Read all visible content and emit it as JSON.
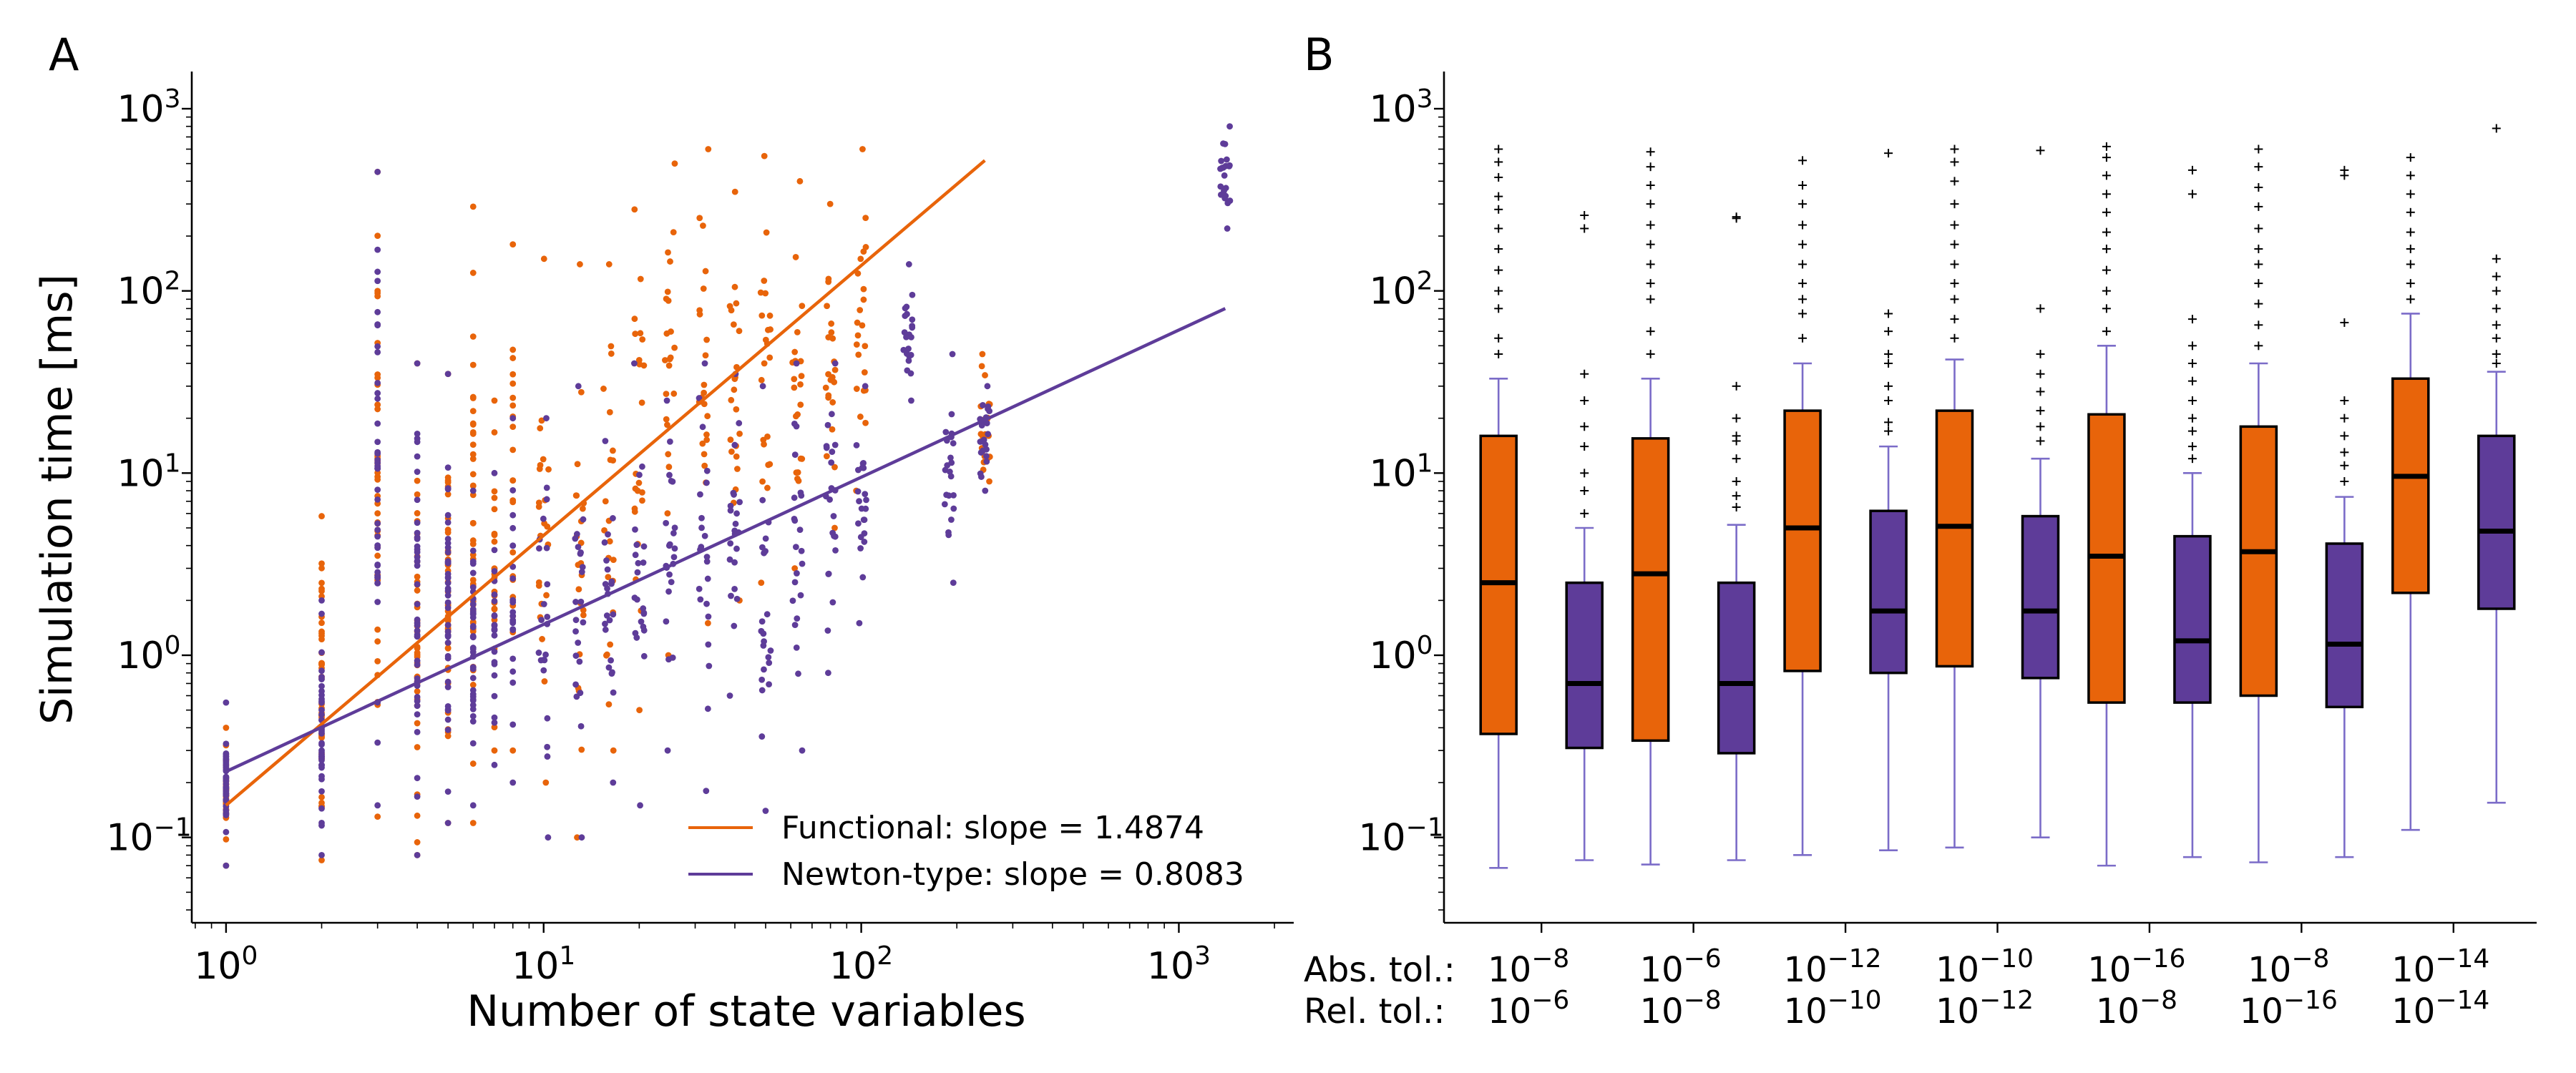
{
  "colors": {
    "functional": "#E8640A",
    "newton": "#5E3C99",
    "whisker": "#7B6CC8",
    "flier": "#000000",
    "median": "#000000"
  },
  "chart_data": [
    {
      "panel_label": "A",
      "type": "scatter",
      "xlabel": "Number of state variables",
      "ylabel": "Simulation time [ms]",
      "x_scale": "log",
      "y_scale": "log",
      "xlim": [
        0.78,
        2300
      ],
      "ylim": [
        0.034,
        1600
      ],
      "x_ticks": [
        {
          "value": 1,
          "base": "10",
          "exp": "0"
        },
        {
          "value": 10,
          "base": "10",
          "exp": "1"
        },
        {
          "value": 100,
          "base": "10",
          "exp": "2"
        },
        {
          "value": 1000,
          "base": "10",
          "exp": "3"
        }
      ],
      "y_ticks": [
        {
          "value": 0.1,
          "base": "10",
          "exp": "−1"
        },
        {
          "value": 1,
          "base": "10",
          "exp": "0"
        },
        {
          "value": 10,
          "base": "10",
          "exp": "1"
        },
        {
          "value": 100,
          "base": "10",
          "exp": "2"
        },
        {
          "value": 1000,
          "base": "10",
          "exp": "3"
        }
      ],
      "legend_position": "lower-right",
      "fit_lines": [
        {
          "name": "Functional: slope = 1.4874",
          "color_key": "functional",
          "x": [
            1,
            245
          ],
          "y": [
            0.15,
            520
          ]
        },
        {
          "name": "Newton-type: slope = 0.8083",
          "color_key": "newton",
          "x": [
            1,
            1400
          ],
          "y": [
            0.23,
            80
          ]
        }
      ],
      "columns": [
        {
          "x": 1,
          "functional": [
            0.07,
            0.4
          ],
          "newton": [
            0.07,
            0.55
          ]
        },
        {
          "x": 2,
          "functional": [
            0.075,
            5.8
          ],
          "newton": [
            0.08,
            2.0
          ]
        },
        {
          "x": 3,
          "functional": [
            0.13,
            450
          ],
          "newton": [
            0.15,
            450
          ]
        },
        {
          "x": 4,
          "functional": [
            0.08,
            40
          ],
          "newton": [
            0.08,
            40
          ]
        },
        {
          "x": 5,
          "functional": [
            0.12,
            35
          ],
          "newton": [
            0.12,
            35
          ]
        },
        {
          "x": 6,
          "functional": [
            0.12,
            290
          ],
          "newton": [
            0.15,
            8
          ]
        },
        {
          "x": 7,
          "functional": [
            0.3,
            25
          ],
          "newton": [
            0.25,
            10
          ]
        },
        {
          "x": 8,
          "functional": [
            0.3,
            180
          ],
          "newton": [
            0.2,
            20
          ]
        },
        {
          "x": 10,
          "functional": [
            0.2,
            150
          ],
          "newton": [
            0.1,
            20
          ]
        },
        {
          "x": 13,
          "functional": [
            0.1,
            140
          ],
          "newton": [
            0.1,
            30
          ]
        },
        {
          "x": 16,
          "functional": [
            0.3,
            140
          ],
          "newton": [
            0.2,
            15
          ]
        },
        {
          "x": 20,
          "functional": [
            0.5,
            280
          ],
          "newton": [
            0.15,
            40
          ]
        },
        {
          "x": 25,
          "functional": [
            1.0,
            500
          ],
          "newton": [
            0.3,
            25
          ]
        },
        {
          "x": 32,
          "functional": [
            1.5,
            600
          ],
          "newton": [
            0.18,
            40
          ]
        },
        {
          "x": 40,
          "functional": [
            2.0,
            350
          ],
          "newton": [
            0.6,
            35
          ]
        },
        {
          "x": 50,
          "functional": [
            2.5,
            550
          ],
          "newton": [
            0.14,
            30
          ]
        },
        {
          "x": 63,
          "functional": [
            3.0,
            400
          ],
          "newton": [
            0.3,
            40
          ]
        },
        {
          "x": 80,
          "functional": [
            5.0,
            300
          ],
          "newton": [
            0.8,
            40
          ]
        },
        {
          "x": 100,
          "functional": [
            8.0,
            600
          ],
          "newton": [
            1.5,
            30
          ]
        },
        {
          "x": 140,
          "functional": [],
          "newton": [
            25,
            140
          ]
        },
        {
          "x": 190,
          "functional": [],
          "newton": [
            2.5,
            45
          ]
        },
        {
          "x": 245,
          "functional": [
            9.0,
            45
          ],
          "newton": [
            8.0,
            30
          ]
        },
        {
          "x": 1400,
          "functional": [],
          "newton": [
            220,
            800
          ]
        }
      ]
    },
    {
      "panel_label": "B",
      "type": "box",
      "y_scale": "log",
      "ylim": [
        0.034,
        1600
      ],
      "y_ticks": [
        {
          "value": 0.1,
          "base": "10",
          "exp": "−1"
        },
        {
          "value": 1,
          "base": "10",
          "exp": "0"
        },
        {
          "value": 10,
          "base": "10",
          "exp": "1"
        },
        {
          "value": 100,
          "base": "10",
          "exp": "2"
        },
        {
          "value": 1000,
          "base": "10",
          "exp": "3"
        }
      ],
      "row_labels": {
        "abs": "Abs. tol.:",
        "rel": "Rel. tol.:"
      },
      "groups": [
        {
          "abs": {
            "base": "10",
            "exp": "−8"
          },
          "rel": {
            "base": "10",
            "exp": "−6"
          },
          "functional": {
            "whislo": 0.068,
            "q1": 0.37,
            "med": 2.5,
            "q3": 16,
            "whishi": 33,
            "fliers": [
              45,
              55,
              80,
              100,
              130,
              170,
              220,
              280,
              330,
              420,
              510,
              600
            ]
          },
          "newton": {
            "whislo": 0.075,
            "q1": 0.31,
            "med": 0.7,
            "q3": 2.5,
            "whishi": 5.0,
            "fliers": [
              6,
              8,
              10,
              14,
              18,
              25,
              35,
              220,
              260
            ]
          }
        },
        {
          "abs": {
            "base": "10",
            "exp": "−6"
          },
          "rel": {
            "base": "10",
            "exp": "−8"
          },
          "functional": {
            "whislo": 0.071,
            "q1": 0.34,
            "med": 2.8,
            "q3": 15.5,
            "whishi": 33,
            "fliers": [
              45,
              60,
              90,
              110,
              140,
              180,
              230,
              300,
              380,
              480,
              580
            ]
          },
          "newton": {
            "whislo": 0.075,
            "q1": 0.29,
            "med": 0.7,
            "q3": 2.5,
            "whishi": 5.2,
            "fliers": [
              6.5,
              7.5,
              9,
              12,
              15,
              16,
              20,
              30,
              250,
              255
            ]
          }
        },
        {
          "abs": {
            "base": "10",
            "exp": "−12"
          },
          "rel": {
            "base": "10",
            "exp": "−10"
          },
          "functional": {
            "whislo": 0.08,
            "q1": 0.82,
            "med": 5.0,
            "q3": 22,
            "whishi": 40,
            "fliers": [
              55,
              75,
              90,
              110,
              140,
              180,
              230,
              300,
              380,
              520
            ]
          },
          "newton": {
            "whislo": 0.085,
            "q1": 0.8,
            "med": 1.75,
            "q3": 6.2,
            "whishi": 14,
            "fliers": [
              17,
              19,
              25,
              30,
              40,
              45,
              60,
              75,
              570
            ]
          }
        },
        {
          "abs": {
            "base": "10",
            "exp": "−10"
          },
          "rel": {
            "base": "10",
            "exp": "−12"
          },
          "functional": {
            "whislo": 0.088,
            "q1": 0.87,
            "med": 5.1,
            "q3": 22,
            "whishi": 42,
            "fliers": [
              55,
              70,
              90,
              110,
              140,
              180,
              230,
              300,
              400,
              510,
              600
            ]
          },
          "newton": {
            "whislo": 0.1,
            "q1": 0.75,
            "med": 1.75,
            "q3": 5.8,
            "whishi": 12,
            "fliers": [
              15,
              18,
              22,
              28,
              35,
              45,
              80,
              590
            ]
          }
        },
        {
          "abs": {
            "base": "10",
            "exp": "−16"
          },
          "rel": {
            "base": "10",
            "exp": "−8"
          },
          "functional": {
            "whislo": 0.07,
            "q1": 0.55,
            "med": 3.5,
            "q3": 21,
            "whishi": 50,
            "fliers": [
              60,
              80,
              100,
              130,
              170,
              210,
              270,
              340,
              430,
              540,
              620
            ]
          },
          "newton": {
            "whislo": 0.078,
            "q1": 0.55,
            "med": 1.2,
            "q3": 4.5,
            "whishi": 10,
            "fliers": [
              12,
              14,
              17,
              20,
              25,
              32,
              40,
              50,
              70,
              340,
              460
            ]
          }
        },
        {
          "abs": {
            "base": "10",
            "exp": "−8"
          },
          "rel": {
            "base": "10",
            "exp": "−16"
          },
          "functional": {
            "whislo": 0.073,
            "q1": 0.6,
            "med": 3.7,
            "q3": 18,
            "whishi": 40,
            "fliers": [
              50,
              65,
              85,
              110,
              140,
              170,
              220,
              290,
              370,
              480,
              600
            ]
          },
          "newton": {
            "whislo": 0.078,
            "q1": 0.52,
            "med": 1.15,
            "q3": 4.1,
            "whishi": 7.4,
            "fliers": [
              9,
              11,
              13,
              16,
              20,
              25,
              67,
              430,
              460
            ]
          }
        },
        {
          "abs": {
            "base": "10",
            "exp": "−14"
          },
          "rel": {
            "base": "10",
            "exp": "−14"
          },
          "functional": {
            "whislo": 0.11,
            "q1": 2.2,
            "med": 9.6,
            "q3": 33,
            "whishi": 75,
            "fliers": [
              90,
              110,
              140,
              170,
              210,
              270,
              340,
              430,
              540
            ]
          },
          "newton": {
            "whislo": 0.155,
            "q1": 1.8,
            "med": 4.8,
            "q3": 16,
            "whishi": 36,
            "fliers": [
              40,
              45,
              55,
              65,
              80,
              100,
              120,
              150,
              780
            ]
          }
        }
      ]
    }
  ]
}
